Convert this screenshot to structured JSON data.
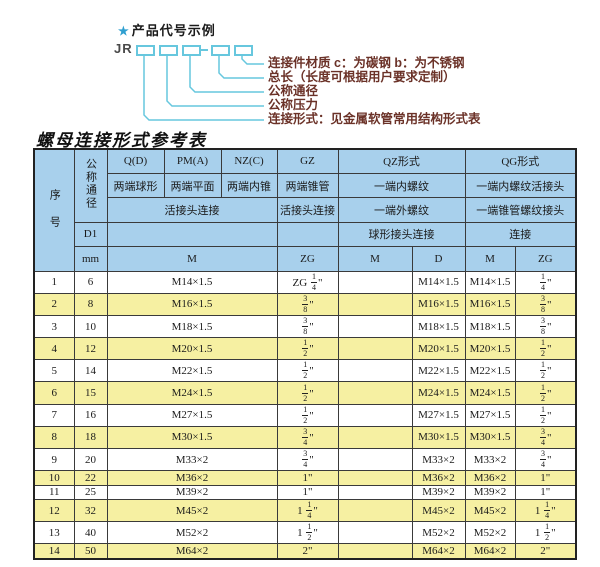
{
  "diagram": {
    "star": "★",
    "title": "产品代号示例",
    "prefix": "JR",
    "dash": "—",
    "labels": [
      "连接件材质  c：为碳钢  b：为不锈钢",
      "总长（长度可根据用户要求定制）",
      "公称通径",
      "公称压力",
      "连接形式：见金属软管常用结构形式表"
    ]
  },
  "table": {
    "title": "螺母连接形式参考表",
    "header": {
      "serial": "序号",
      "diameter": "公称通径",
      "d1": "D1",
      "mm": "mm",
      "q_code": "Q(D)",
      "q_type": "两端球形",
      "pm_code": "PM(A)",
      "pm_type": "两端平面",
      "nz_code": "NZ(C)",
      "nz_type": "两端内锥",
      "gz_code": "GZ",
      "gz_type": "两端锥管",
      "qz_code": "QZ形式",
      "qz_row2": "一端内螺纹",
      "qz_row3": "一端外螺纹",
      "qz_row4": "球形接头连接",
      "qg_code": "QG形式",
      "qg_row2": "一端内螺纹活接头",
      "qg_row3": "一端锥管螺纹接头",
      "qg_row4": "连接",
      "union_m": "活接头连接",
      "union_gz": "活接头连接",
      "m": "M",
      "zg": "ZG",
      "qz_m": "M",
      "qz_d": "D",
      "qg_m": "M",
      "qg_zg": "ZG"
    },
    "rows": [
      {
        "no": "1",
        "dn": "6",
        "m": "M14×1.5",
        "gz": "ZG 1/4\"",
        "qz_m": "",
        "qz_d": "M14×1.5",
        "qg_m": "M14×1.5",
        "qg_zg": "1/4\""
      },
      {
        "no": "2",
        "dn": "8",
        "m": "M16×1.5",
        "gz": "3/8\"",
        "qz_m": "",
        "qz_d": "M16×1.5",
        "qg_m": "M16×1.5",
        "qg_zg": "3/8\""
      },
      {
        "no": "3",
        "dn": "10",
        "m": "M18×1.5",
        "gz": "3/8\"",
        "qz_m": "",
        "qz_d": "M18×1.5",
        "qg_m": "M18×1.5",
        "qg_zg": "3/8\""
      },
      {
        "no": "4",
        "dn": "12",
        "m": "M20×1.5",
        "gz": "1/2\"",
        "qz_m": "",
        "qz_d": "M20×1.5",
        "qg_m": "M20×1.5",
        "qg_zg": "1/2\""
      },
      {
        "no": "5",
        "dn": "14",
        "m": "M22×1.5",
        "gz": "1/2\"",
        "qz_m": "",
        "qz_d": "M22×1.5",
        "qg_m": "M22×1.5",
        "qg_zg": "1/2\""
      },
      {
        "no": "6",
        "dn": "15",
        "m": "M24×1.5",
        "gz": "1/2\"",
        "qz_m": "",
        "qz_d": "M24×1.5",
        "qg_m": "M24×1.5",
        "qg_zg": "1/2\""
      },
      {
        "no": "7",
        "dn": "16",
        "m": "M27×1.5",
        "gz": "1/2\"",
        "qz_m": "",
        "qz_d": "M27×1.5",
        "qg_m": "M27×1.5",
        "qg_zg": "1/2\""
      },
      {
        "no": "8",
        "dn": "18",
        "m": "M30×1.5",
        "gz": "3/4\"",
        "qz_m": "",
        "qz_d": "M30×1.5",
        "qg_m": "M30×1.5",
        "qg_zg": "3/4\""
      },
      {
        "no": "9",
        "dn": "20",
        "m": "M33×2",
        "gz": "3/4\"",
        "qz_m": "",
        "qz_d": "M33×2",
        "qg_m": "M33×2",
        "qg_zg": "3/4\""
      },
      {
        "no": "10",
        "dn": "22",
        "m": "M36×2",
        "gz": "1\"",
        "qz_m": "",
        "qz_d": "M36×2",
        "qg_m": "M36×2",
        "qg_zg": "1\""
      },
      {
        "no": "11",
        "dn": "25",
        "m": "M39×2",
        "gz": "1\"",
        "qz_m": "",
        "qz_d": "M39×2",
        "qg_m": "M39×2",
        "qg_zg": "1\""
      },
      {
        "no": "12",
        "dn": "32",
        "m": "M45×2",
        "gz": "1 1/4\"",
        "qz_m": "",
        "qz_d": "M45×2",
        "qg_m": "M45×2",
        "qg_zg": "1 1/4\""
      },
      {
        "no": "13",
        "dn": "40",
        "m": "M52×2",
        "gz": "1 1/2\"",
        "qz_m": "",
        "qz_d": "M52×2",
        "qg_m": "M52×2",
        "qg_zg": "1 1/2\""
      },
      {
        "no": "14",
        "dn": "50",
        "m": "M64×2",
        "gz": "2\"",
        "qz_m": "",
        "qz_d": "M64×2",
        "qg_m": "M64×2",
        "qg_zg": "2\""
      }
    ]
  },
  "colors": {
    "header_blue": "#a8d0ec",
    "row_yellow": "#f6f0a2",
    "row_white": "#ffffff",
    "connector_cyan": "#67c7de",
    "label_maroon": "#6b3228",
    "border_dark": "#3a3a3a"
  }
}
